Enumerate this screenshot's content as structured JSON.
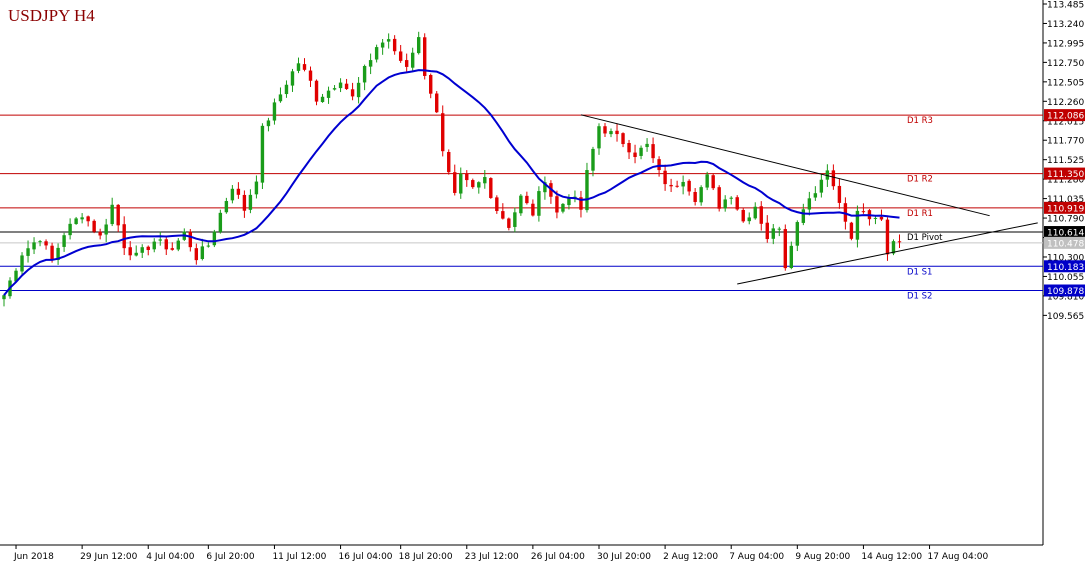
{
  "chart_data": {
    "type": "candlestick",
    "title": "USDJPY H4",
    "ylim": [
      109.3,
      113.485
    ],
    "y_ticks": [
      "113.485",
      "113.240",
      "112.995",
      "112.750",
      "112.505",
      "112.260",
      "112.015",
      "111.770",
      "111.525",
      "111.280",
      "111.035",
      "110.790",
      "110.545",
      "110.300",
      "110.055",
      "109.810",
      "109.565"
    ],
    "x_ticks": [
      {
        "label": "Jun 2018",
        "i": 2
      },
      {
        "label": "29 Jun 12:00",
        "i": 13
      },
      {
        "label": "4 Jul 04:00",
        "i": 24
      },
      {
        "label": "6 Jul 20:00",
        "i": 34
      },
      {
        "label": "11 Jul 12:00",
        "i": 45
      },
      {
        "label": "16 Jul 04:00",
        "i": 56
      },
      {
        "label": "18 Jul 20:00",
        "i": 66
      },
      {
        "label": "23 Jul 12:00",
        "i": 77
      },
      {
        "label": "26 Jul 04:00",
        "i": 88
      },
      {
        "label": "30 Jul 20:00",
        "i": 99
      },
      {
        "label": "2 Aug 12:00",
        "i": 110
      },
      {
        "label": "7 Aug 04:00",
        "i": 121
      },
      {
        "label": "9 Aug 20:00",
        "i": 132
      },
      {
        "label": "14 Aug 12:00",
        "i": 143
      },
      {
        "label": "17 Aug 04:00",
        "i": 154
      }
    ],
    "levels": [
      {
        "name": "D1 R3",
        "value": 112.086,
        "label": "112.086",
        "color": "#c00000"
      },
      {
        "name": "D1 R2",
        "value": 111.35,
        "label": "111.350",
        "color": "#c00000"
      },
      {
        "name": "D1 R1",
        "value": 110.919,
        "label": "110.919",
        "color": "#c00000"
      },
      {
        "name": "D1 Pivot",
        "value": 110.614,
        "label": "110.614",
        "color": "#000000"
      },
      {
        "name": "D1 S1",
        "value": 110.183,
        "label": "110.183",
        "color": "#0000c8"
      },
      {
        "name": "D1 S2",
        "value": 109.878,
        "label": "109.878",
        "color": "#0000c8"
      }
    ],
    "current_price": {
      "value": 110.478,
      "label": "110.478"
    },
    "bull_color": "#1a9c1a",
    "bear_color": "#e00000",
    "ma_color": "#0000d0",
    "anchors": [
      [
        0,
        109.82
      ],
      [
        3,
        110.35
      ],
      [
        6,
        110.55
      ],
      [
        8,
        110.25
      ],
      [
        10,
        110.6
      ],
      [
        13,
        110.85
      ],
      [
        16,
        110.55
      ],
      [
        18,
        110.95
      ],
      [
        20,
        110.45
      ],
      [
        22,
        110.3
      ],
      [
        25,
        110.5
      ],
      [
        28,
        110.4
      ],
      [
        30,
        110.6
      ],
      [
        32,
        110.3
      ],
      [
        34,
        110.45
      ],
      [
        36,
        110.85
      ],
      [
        38,
        111.2
      ],
      [
        40,
        110.9
      ],
      [
        42,
        111.3
      ],
      [
        43,
        111.9
      ],
      [
        45,
        112.2
      ],
      [
        47,
        112.5
      ],
      [
        49,
        112.75
      ],
      [
        51,
        112.5
      ],
      [
        52,
        112.3
      ],
      [
        54,
        112.4
      ],
      [
        56,
        112.55
      ],
      [
        58,
        112.3
      ],
      [
        60,
        112.65
      ],
      [
        62,
        112.95
      ],
      [
        64,
        113.05
      ],
      [
        65,
        112.85
      ],
      [
        67,
        112.7
      ],
      [
        69,
        113.1
      ],
      [
        70,
        112.55
      ],
      [
        71,
        112.4
      ],
      [
        72,
        112.15
      ],
      [
        73,
        111.6
      ],
      [
        75,
        111.05
      ],
      [
        76,
        111.3
      ],
      [
        78,
        111.15
      ],
      [
        80,
        111.3
      ],
      [
        82,
        110.9
      ],
      [
        84,
        110.7
      ],
      [
        86,
        111.05
      ],
      [
        88,
        110.85
      ],
      [
        90,
        111.3
      ],
      [
        92,
        110.85
      ],
      [
        94,
        111.1
      ],
      [
        96,
        110.9
      ],
      [
        97,
        111.35
      ],
      [
        99,
        111.95
      ],
      [
        101,
        111.85
      ],
      [
        103,
        111.75
      ],
      [
        105,
        111.6
      ],
      [
        107,
        111.7
      ],
      [
        109,
        111.35
      ],
      [
        111,
        111.15
      ],
      [
        113,
        111.3
      ],
      [
        115,
        111.05
      ],
      [
        117,
        111.3
      ],
      [
        119,
        110.95
      ],
      [
        121,
        111.1
      ],
      [
        123,
        110.75
      ],
      [
        125,
        110.95
      ],
      [
        127,
        110.55
      ],
      [
        129,
        110.7
      ],
      [
        130,
        110.2
      ],
      [
        131,
        110.5
      ],
      [
        133,
        110.95
      ],
      [
        135,
        111.15
      ],
      [
        137,
        111.4
      ],
      [
        138,
        111.25
      ],
      [
        139,
        110.95
      ],
      [
        140,
        110.75
      ],
      [
        141,
        110.5
      ],
      [
        142,
        110.9
      ],
      [
        144,
        110.75
      ],
      [
        146,
        110.8
      ],
      [
        147,
        110.35
      ],
      [
        148,
        110.55
      ],
      [
        149,
        110.45
      ]
    ],
    "trendlines": [
      {
        "from": [
          96,
          112.09
        ],
        "to": [
          164,
          110.82
        ]
      },
      {
        "from": [
          122,
          109.96
        ],
        "to": [
          172,
          110.73
        ]
      }
    ]
  }
}
